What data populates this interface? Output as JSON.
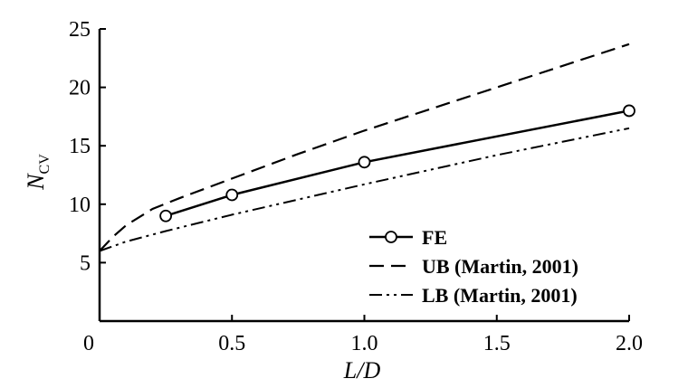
{
  "chart_data": {
    "type": "line",
    "xlabel": "L/D",
    "ylabel": {
      "main": "N",
      "subscript": "CV"
    },
    "xlim": [
      0,
      2.0
    ],
    "ylim": [
      0,
      25
    ],
    "xticks": [
      {
        "value": 0,
        "label": "0"
      },
      {
        "value": 0.5,
        "label": "0.5"
      },
      {
        "value": 1.0,
        "label": "1.0"
      },
      {
        "value": 1.5,
        "label": "1.5"
      },
      {
        "value": 2.0,
        "label": "2.0"
      }
    ],
    "yticks": [
      {
        "value": 5,
        "label": "5"
      },
      {
        "value": 10,
        "label": "10"
      },
      {
        "value": 15,
        "label": "15"
      },
      {
        "value": 20,
        "label": "20"
      },
      {
        "value": 25,
        "label": "25"
      }
    ],
    "grid": false,
    "legend_position": "bottom-right",
    "series": [
      {
        "name": "FE",
        "style": "solid-circle",
        "x": [
          0.25,
          0.5,
          1.0,
          2.0
        ],
        "y": [
          9.0,
          10.8,
          13.6,
          18.0
        ]
      },
      {
        "name": "UB (Martin, 2001)",
        "style": "dashed",
        "x": [
          0.0,
          0.05,
          0.1,
          0.2,
          0.3,
          0.5,
          0.75,
          1.0,
          1.5,
          2.0
        ],
        "y": [
          6.0,
          7.2,
          8.2,
          9.6,
          10.5,
          12.2,
          14.3,
          16.3,
          20.0,
          23.7
        ]
      },
      {
        "name": "LB (Martin, 2001)",
        "style": "dash-dot-dot",
        "x": [
          0.0,
          0.1,
          0.25,
          0.5,
          0.75,
          1.0,
          1.5,
          2.0
        ],
        "y": [
          6.0,
          6.8,
          7.7,
          9.1,
          10.4,
          11.7,
          14.2,
          16.5
        ]
      }
    ]
  }
}
